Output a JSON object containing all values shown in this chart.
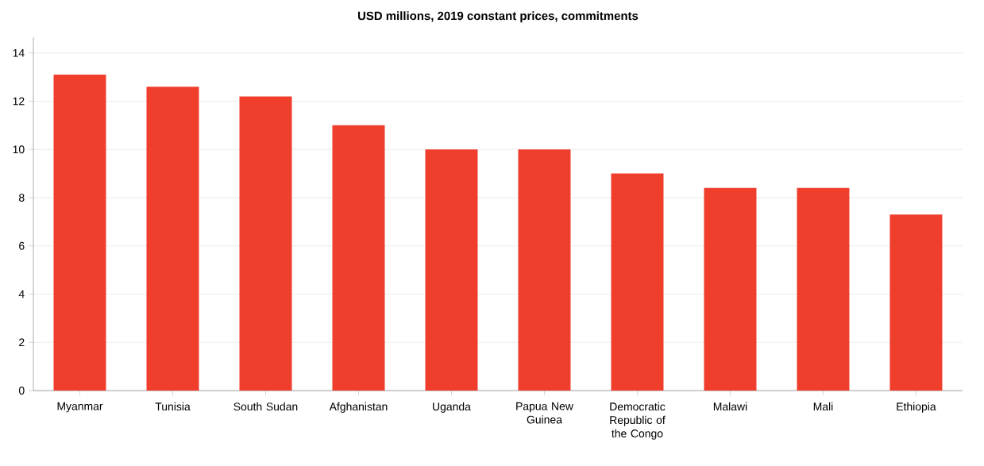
{
  "chart_data": {
    "type": "bar",
    "title": "USD millions, 2019 constant prices, commitments",
    "categories": [
      "Myanmar",
      "Tunisia",
      "South Sudan",
      "Afghanistan",
      "Uganda",
      "Papua New Guinea",
      "Democratic Republic of the Congo",
      "Malawi",
      "Mali",
      "Ethiopia"
    ],
    "values": [
      13.1,
      12.6,
      12.2,
      11.0,
      10.0,
      10.0,
      9.0,
      8.4,
      8.4,
      7.3
    ],
    "color": "#ef3e2c",
    "ylim": [
      0,
      14.65
    ],
    "yticks": [
      0,
      2,
      4,
      6,
      8,
      10,
      12,
      14
    ],
    "grid": "y"
  }
}
